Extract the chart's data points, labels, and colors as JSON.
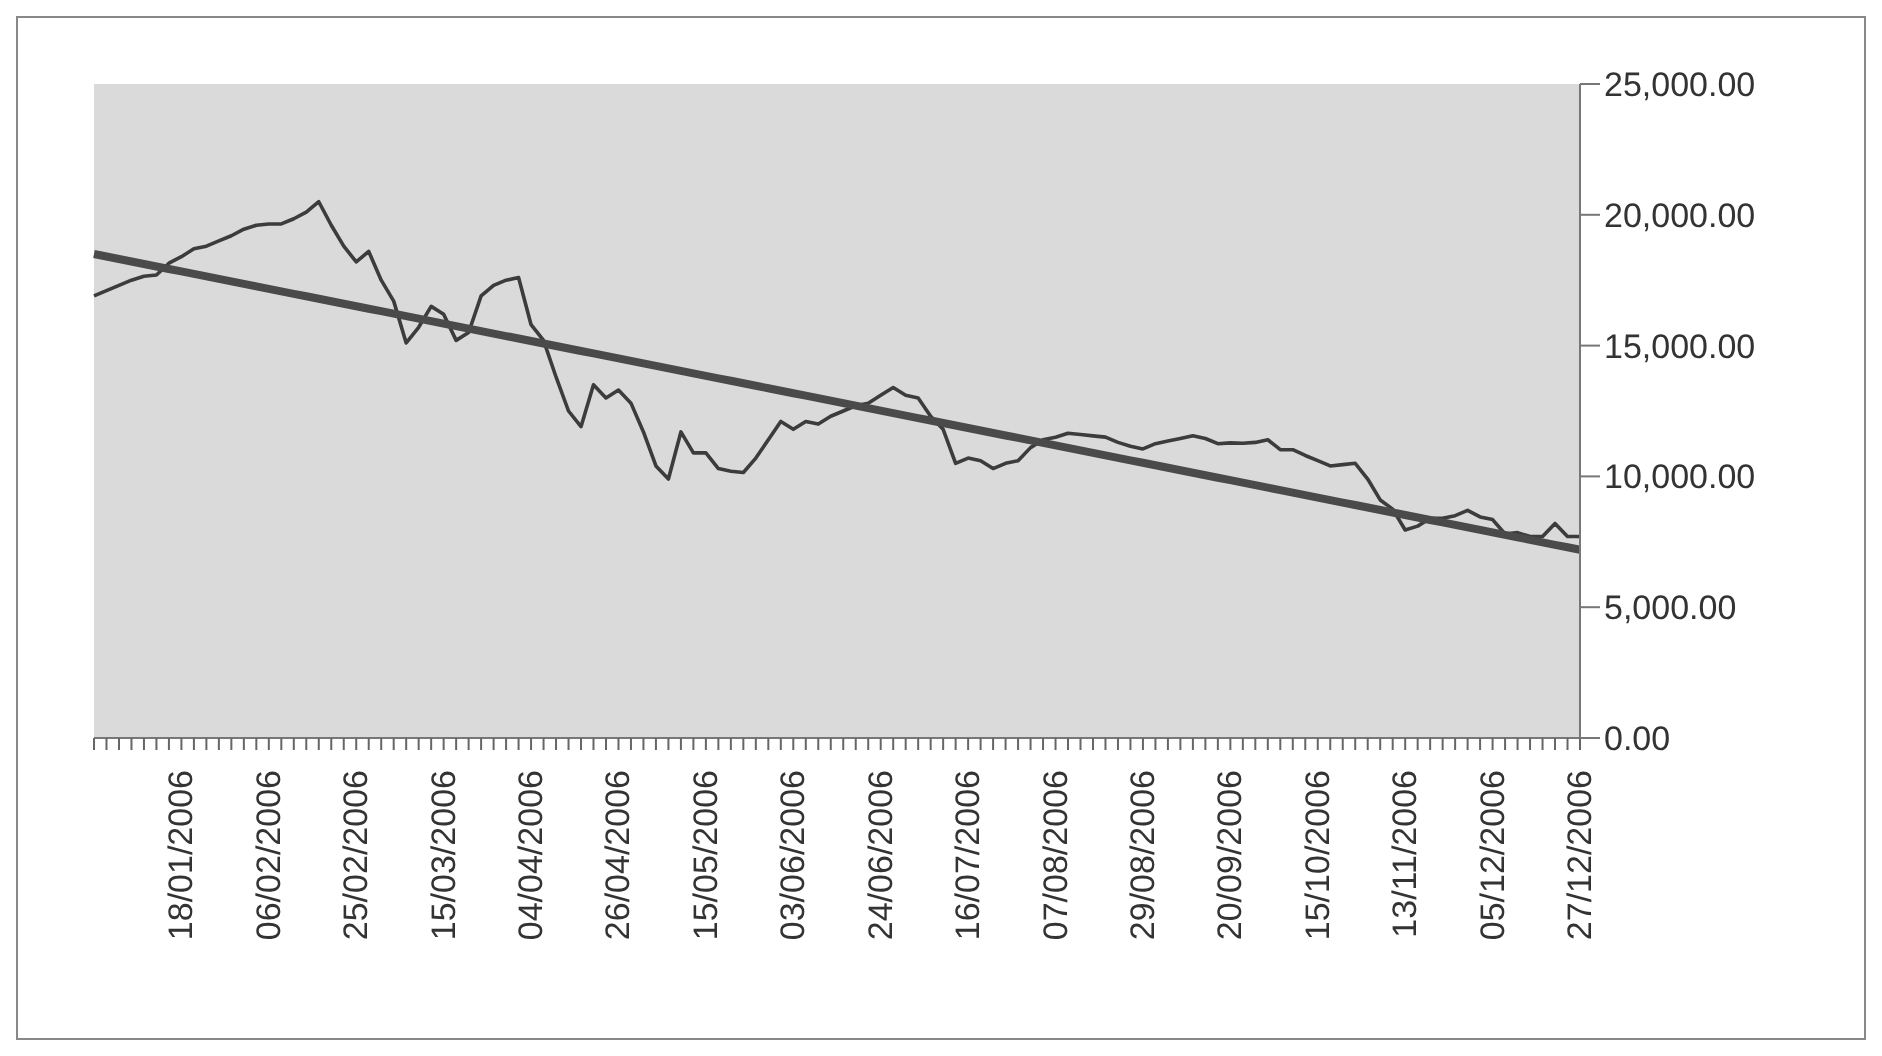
{
  "chart_data": {
    "type": "line",
    "categories": [
      null,
      null,
      null,
      null,
      null,
      null,
      null,
      "18/01/2006",
      null,
      null,
      null,
      null,
      null,
      null,
      "06/02/2006",
      null,
      null,
      null,
      null,
      null,
      null,
      "25/02/2006",
      null,
      null,
      null,
      null,
      null,
      null,
      "15/03/2006",
      null,
      null,
      null,
      null,
      null,
      null,
      "04/04/2006",
      null,
      null,
      null,
      null,
      null,
      null,
      "26/04/2006",
      null,
      null,
      null,
      null,
      null,
      null,
      "15/05/2006",
      null,
      null,
      null,
      null,
      null,
      null,
      "03/06/2006",
      null,
      null,
      null,
      null,
      null,
      null,
      "24/06/2006",
      null,
      null,
      null,
      null,
      null,
      null,
      "16/07/2006",
      null,
      null,
      null,
      null,
      null,
      null,
      "07/08/2006",
      null,
      null,
      null,
      null,
      null,
      null,
      "29/08/2006",
      null,
      null,
      null,
      null,
      null,
      null,
      "20/09/2006",
      null,
      null,
      null,
      null,
      null,
      null,
      "15/10/2006",
      null,
      null,
      null,
      null,
      null,
      null,
      "13/11/2006",
      null,
      null,
      null,
      null,
      null,
      null,
      "05/12/2006",
      null,
      null,
      null,
      null,
      null,
      null,
      "27/12/2006"
    ],
    "series": [
      {
        "color": "#3c3c3c",
        "values": [
          16900,
          17100,
          17300,
          17500,
          17650,
          17700,
          18150,
          18400,
          18700,
          18800,
          19000,
          19200,
          19450,
          19600,
          19650,
          19650,
          19850,
          20100,
          20500,
          19600,
          18800,
          18200,
          18600,
          17500,
          16700,
          15100,
          15700,
          16500,
          16200,
          15200,
          15500,
          16900,
          17300,
          17500,
          17600,
          15800,
          15200,
          13800,
          12500,
          11900,
          13500,
          13000,
          13300,
          12800,
          11700,
          10400,
          9900,
          11700,
          10900,
          10900,
          10300,
          10200,
          10150,
          10700,
          11400,
          12100,
          11800,
          12100,
          12000,
          12300,
          12500,
          12700,
          12800,
          13100,
          13400,
          13100,
          13000,
          12300,
          11800,
          10500,
          10700,
          10600,
          10300,
          10500,
          10600,
          11100,
          11400,
          11500,
          11650,
          11600,
          11550,
          11500,
          11300,
          11150,
          11050,
          11250,
          11350,
          11450,
          11550,
          11450,
          11250,
          11280,
          11270,
          11300,
          11400,
          11020,
          11020,
          10800,
          10600,
          10400,
          10450,
          10500,
          9900,
          9100,
          8750,
          7950,
          8100,
          8400,
          8400,
          8500,
          8700,
          8450,
          8350,
          7800,
          7850,
          7700,
          7700,
          8200,
          7700,
          7700
        ]
      },
      {
        "color": "#4a4a4a",
        "values": [
          18500,
          18405,
          18310,
          18215,
          18120,
          18025,
          17930,
          17835,
          17740,
          17645,
          17550,
          17455,
          17360,
          17265,
          17170,
          17075,
          16980,
          16885,
          16790,
          16695,
          16600,
          16505,
          16410,
          16315,
          16220,
          16125,
          16030,
          15935,
          15840,
          15745,
          15650,
          15555,
          15460,
          15365,
          15270,
          15175,
          15080,
          14985,
          14890,
          14795,
          14700,
          14605,
          14510,
          14415,
          14320,
          14225,
          14130,
          14035,
          13940,
          13845,
          13750,
          13655,
          13560,
          13465,
          13370,
          13275,
          13180,
          13085,
          12990,
          12895,
          12800,
          12705,
          12610,
          12515,
          12420,
          12325,
          12230,
          12135,
          12040,
          11945,
          11850,
          11755,
          11660,
          11565,
          11470,
          11375,
          11280,
          11185,
          11090,
          10995,
          10900,
          10805,
          10710,
          10615,
          10520,
          10425,
          10330,
          10235,
          10140,
          10045,
          9950,
          9855,
          9760,
          9665,
          9570,
          9475,
          9380,
          9285,
          9190,
          9095,
          9000,
          8905,
          8810,
          8715,
          8620,
          8525,
          8430,
          8335,
          8240,
          8145,
          8050,
          7955,
          7860,
          7765,
          7670,
          7575,
          7480,
          7385,
          7290,
          7195
        ]
      }
    ],
    "ylim": [
      0,
      25000
    ],
    "yticks": [
      {
        "value": 0,
        "label": "0.00"
      },
      {
        "value": 5000,
        "label": "5,000.00"
      },
      {
        "value": 10000,
        "label": "10,000.00"
      },
      {
        "value": 15000,
        "label": "15,000.00"
      },
      {
        "value": 20000,
        "label": "20,000.00"
      },
      {
        "value": 25000,
        "label": "25,000.00"
      }
    ],
    "legend": false
  }
}
